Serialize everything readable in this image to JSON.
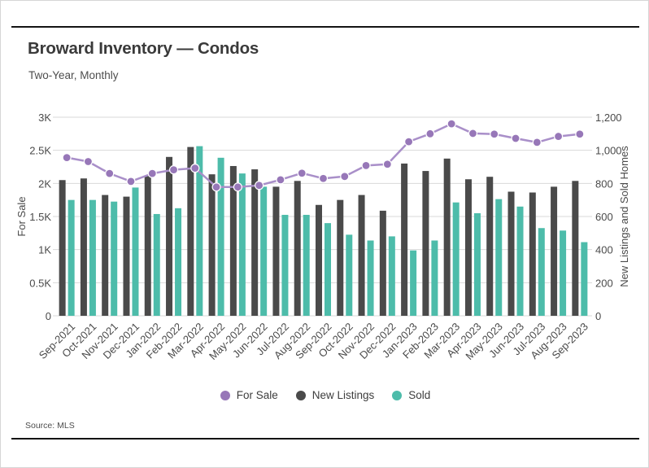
{
  "header": {
    "title": "Broward Inventory — Condos",
    "subtitle": "Two-Year, Monthly"
  },
  "footer": {
    "source": "Source: MLS"
  },
  "legend": {
    "position": "bottom-center",
    "items": [
      {
        "label": "For Sale",
        "color": "#9777b8",
        "marker": "circle"
      },
      {
        "label": "New Listings",
        "color": "#4a4a4a",
        "marker": "circle"
      },
      {
        "label": "Sold",
        "color": "#4dbcaa",
        "marker": "circle"
      }
    ]
  },
  "chart_data": {
    "type": "bar+line",
    "title": "Broward Inventory — Condos",
    "subtitle": "Two-Year, Monthly",
    "grid": true,
    "categories": [
      "Sep-2021",
      "Oct-2021",
      "Nov-2021",
      "Dec-2021",
      "Jan-2022",
      "Feb-2022",
      "Mar-2022",
      "Apr-2022",
      "May-2022",
      "Jun-2022",
      "Jul-2022",
      "Aug-2022",
      "Sep-2022",
      "Oct-2022",
      "Nov-2022",
      "Dec-2022",
      "Jan-2023",
      "Feb-2023",
      "Mar-2023",
      "Apr-2023",
      "May-2023",
      "Jun-2023",
      "Jul-2023",
      "Aug-2023",
      "Sep-2023"
    ],
    "left_axis": {
      "label": "For Sale",
      "max": 3000,
      "min": 0,
      "tick_labels": [
        "0",
        "0.5K",
        "1K",
        "1.5K",
        "2K",
        "2.5K",
        "3K"
      ]
    },
    "right_axis": {
      "label": "New Listings and Sold Homes",
      "max": 1200,
      "min": 0,
      "tick_values": [
        0,
        200,
        400,
        600,
        800,
        1000,
        1200
      ],
      "tick_labels": [
        "0",
        "200",
        "400",
        "600",
        "800",
        "1,000",
        "1,200"
      ]
    },
    "series": [
      {
        "name": "For Sale",
        "type": "line",
        "axis": "left",
        "line_color": "#a98fc9",
        "marker_color": "#9777b8",
        "values": [
          2390,
          2330,
          2150,
          2030,
          2150,
          2205,
          2230,
          1945,
          1945,
          1970,
          2055,
          2155,
          2075,
          2105,
          2270,
          2290,
          2630,
          2750,
          2900,
          2755,
          2745,
          2680,
          2620,
          2710,
          2745
        ]
      },
      {
        "name": "New Listings",
        "type": "bar",
        "axis": "right",
        "color": "#4a4a4a",
        "values": [
          820,
          830,
          730,
          720,
          845,
          960,
          1020,
          855,
          905,
          885,
          780,
          815,
          670,
          700,
          730,
          635,
          920,
          875,
          950,
          825,
          840,
          750,
          745,
          780,
          815
        ]
      },
      {
        "name": "Sold",
        "type": "bar",
        "axis": "right",
        "color": "#4dbcaa",
        "values": [
          700,
          700,
          690,
          775,
          615,
          650,
          1025,
          955,
          860,
          780,
          610,
          610,
          560,
          490,
          455,
          480,
          395,
          455,
          685,
          620,
          705,
          660,
          530,
          515,
          445
        ]
      }
    ]
  }
}
